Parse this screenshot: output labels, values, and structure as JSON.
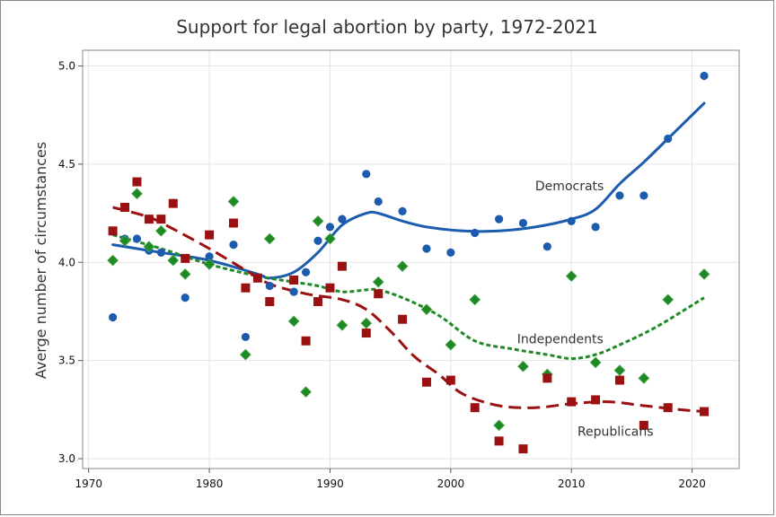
{
  "chart_data": {
    "type": "scatter",
    "title": "Support for legal abortion by party, 1972-2021",
    "xlabel": "",
    "ylabel": "Averge number of circumstances",
    "xlim": [
      1969.5,
      2023.9
    ],
    "ylim": [
      2.95,
      5.08
    ],
    "xticks": [
      1970,
      1980,
      1990,
      2000,
      2010,
      2020
    ],
    "yticks": [
      3.0,
      3.5,
      4.0,
      4.5,
      5.0
    ],
    "ytick_labels": [
      "3.0",
      "3.5",
      "4.0",
      "4.5",
      "5.0"
    ],
    "grid": true,
    "legend": "none",
    "series": [
      {
        "name": "Democrats",
        "color": "#1c5cae",
        "marker": "circle",
        "line_style": "solid",
        "points": [
          {
            "x": 1972,
            "y": 3.72
          },
          {
            "x": 1973,
            "y": 4.12
          },
          {
            "x": 1974,
            "y": 4.12
          },
          {
            "x": 1975,
            "y": 4.06
          },
          {
            "x": 1976,
            "y": 4.05
          },
          {
            "x": 1977,
            "y": 4.01
          },
          {
            "x": 1978,
            "y": 3.82
          },
          {
            "x": 1980,
            "y": 4.03
          },
          {
            "x": 1982,
            "y": 4.09
          },
          {
            "x": 1983,
            "y": 3.62
          },
          {
            "x": 1984,
            "y": 3.92
          },
          {
            "x": 1985,
            "y": 3.88
          },
          {
            "x": 1987,
            "y": 3.85
          },
          {
            "x": 1988,
            "y": 3.95
          },
          {
            "x": 1989,
            "y": 4.11
          },
          {
            "x": 1990,
            "y": 4.18
          },
          {
            "x": 1991,
            "y": 4.22
          },
          {
            "x": 1993,
            "y": 4.45
          },
          {
            "x": 1994,
            "y": 4.31
          },
          {
            "x": 1996,
            "y": 4.26
          },
          {
            "x": 1998,
            "y": 4.07
          },
          {
            "x": 2000,
            "y": 4.05
          },
          {
            "x": 2002,
            "y": 4.15
          },
          {
            "x": 2004,
            "y": 4.22
          },
          {
            "x": 2006,
            "y": 4.2
          },
          {
            "x": 2008,
            "y": 4.08
          },
          {
            "x": 2010,
            "y": 4.21
          },
          {
            "x": 2012,
            "y": 4.18
          },
          {
            "x": 2014,
            "y": 4.34
          },
          {
            "x": 2016,
            "y": 4.34
          },
          {
            "x": 2018,
            "y": 4.63
          },
          {
            "x": 2021,
            "y": 4.95
          }
        ],
        "trend": [
          {
            "x": 1972,
            "y": 4.09
          },
          {
            "x": 1976,
            "y": 4.05
          },
          {
            "x": 1980,
            "y": 4.01
          },
          {
            "x": 1984,
            "y": 3.94
          },
          {
            "x": 1985,
            "y": 3.92
          },
          {
            "x": 1987,
            "y": 3.95
          },
          {
            "x": 1989,
            "y": 4.05
          },
          {
            "x": 1991,
            "y": 4.19
          },
          {
            "x": 1993,
            "y": 4.25
          },
          {
            "x": 1994,
            "y": 4.25
          },
          {
            "x": 1996,
            "y": 4.21
          },
          {
            "x": 1998,
            "y": 4.18
          },
          {
            "x": 2001,
            "y": 4.16
          },
          {
            "x": 2004,
            "y": 4.16
          },
          {
            "x": 2007,
            "y": 4.18
          },
          {
            "x": 2010,
            "y": 4.22
          },
          {
            "x": 2012,
            "y": 4.27
          },
          {
            "x": 2014,
            "y": 4.4
          },
          {
            "x": 2016,
            "y": 4.51
          },
          {
            "x": 2018,
            "y": 4.63
          },
          {
            "x": 2021,
            "y": 4.81
          }
        ]
      },
      {
        "name": "Independents",
        "color": "#1f8a25",
        "marker": "diamond",
        "line_style": "dotted",
        "points": [
          {
            "x": 1972,
            "y": 4.01
          },
          {
            "x": 1973,
            "y": 4.11
          },
          {
            "x": 1974,
            "y": 4.35
          },
          {
            "x": 1975,
            "y": 4.08
          },
          {
            "x": 1976,
            "y": 4.16
          },
          {
            "x": 1977,
            "y": 4.01
          },
          {
            "x": 1978,
            "y": 3.94
          },
          {
            "x": 1980,
            "y": 3.99
          },
          {
            "x": 1982,
            "y": 4.31
          },
          {
            "x": 1983,
            "y": 3.53
          },
          {
            "x": 1985,
            "y": 4.12
          },
          {
            "x": 1987,
            "y": 3.7
          },
          {
            "x": 1988,
            "y": 3.34
          },
          {
            "x": 1989,
            "y": 4.21
          },
          {
            "x": 1990,
            "y": 4.12
          },
          {
            "x": 1991,
            "y": 3.68
          },
          {
            "x": 1993,
            "y": 3.69
          },
          {
            "x": 1994,
            "y": 3.9
          },
          {
            "x": 1996,
            "y": 3.98
          },
          {
            "x": 1998,
            "y": 3.76
          },
          {
            "x": 2000,
            "y": 3.58
          },
          {
            "x": 2002,
            "y": 3.81
          },
          {
            "x": 2004,
            "y": 3.17
          },
          {
            "x": 2006,
            "y": 3.47
          },
          {
            "x": 2008,
            "y": 3.43
          },
          {
            "x": 2010,
            "y": 3.93
          },
          {
            "x": 2012,
            "y": 3.49
          },
          {
            "x": 2014,
            "y": 3.45
          },
          {
            "x": 2016,
            "y": 3.41
          },
          {
            "x": 2018,
            "y": 3.81
          },
          {
            "x": 2021,
            "y": 3.94
          }
        ],
        "trend": [
          {
            "x": 1972,
            "y": 4.14
          },
          {
            "x": 1976,
            "y": 4.07
          },
          {
            "x": 1980,
            "y": 3.99
          },
          {
            "x": 1984,
            "y": 3.93
          },
          {
            "x": 1987,
            "y": 3.9
          },
          {
            "x": 1989,
            "y": 3.88
          },
          {
            "x": 1991,
            "y": 3.85
          },
          {
            "x": 1993,
            "y": 3.86
          },
          {
            "x": 1994,
            "y": 3.86
          },
          {
            "x": 1996,
            "y": 3.82
          },
          {
            "x": 1999,
            "y": 3.73
          },
          {
            "x": 2002,
            "y": 3.6
          },
          {
            "x": 2005,
            "y": 3.56
          },
          {
            "x": 2008,
            "y": 3.53
          },
          {
            "x": 2010,
            "y": 3.51
          },
          {
            "x": 2012,
            "y": 3.53
          },
          {
            "x": 2014,
            "y": 3.58
          },
          {
            "x": 2017,
            "y": 3.67
          },
          {
            "x": 2021,
            "y": 3.82
          }
        ]
      },
      {
        "name": "Republicans",
        "color": "#9b1111",
        "marker": "square",
        "line_style": "dashed",
        "points": [
          {
            "x": 1972,
            "y": 4.16
          },
          {
            "x": 1973,
            "y": 4.28
          },
          {
            "x": 1974,
            "y": 4.41
          },
          {
            "x": 1975,
            "y": 4.22
          },
          {
            "x": 1976,
            "y": 4.22
          },
          {
            "x": 1977,
            "y": 4.3
          },
          {
            "x": 1978,
            "y": 4.02
          },
          {
            "x": 1980,
            "y": 4.14
          },
          {
            "x": 1982,
            "y": 4.2
          },
          {
            "x": 1983,
            "y": 3.87
          },
          {
            "x": 1984,
            "y": 3.92
          },
          {
            "x": 1985,
            "y": 3.8
          },
          {
            "x": 1987,
            "y": 3.91
          },
          {
            "x": 1988,
            "y": 3.6
          },
          {
            "x": 1989,
            "y": 3.8
          },
          {
            "x": 1990,
            "y": 3.87
          },
          {
            "x": 1991,
            "y": 3.98
          },
          {
            "x": 1993,
            "y": 3.64
          },
          {
            "x": 1994,
            "y": 3.84
          },
          {
            "x": 1996,
            "y": 3.71
          },
          {
            "x": 1998,
            "y": 3.39
          },
          {
            "x": 2000,
            "y": 3.4
          },
          {
            "x": 2002,
            "y": 3.26
          },
          {
            "x": 2004,
            "y": 3.09
          },
          {
            "x": 2006,
            "y": 3.05
          },
          {
            "x": 2008,
            "y": 3.41
          },
          {
            "x": 2010,
            "y": 3.29
          },
          {
            "x": 2012,
            "y": 3.3
          },
          {
            "x": 2014,
            "y": 3.4
          },
          {
            "x": 2016,
            "y": 3.17
          },
          {
            "x": 2018,
            "y": 3.26
          },
          {
            "x": 2021,
            "y": 3.24
          }
        ],
        "trend": [
          {
            "x": 1972,
            "y": 4.28
          },
          {
            "x": 1975,
            "y": 4.23
          },
          {
            "x": 1977,
            "y": 4.17
          },
          {
            "x": 1980,
            "y": 4.07
          },
          {
            "x": 1983,
            "y": 3.96
          },
          {
            "x": 1985,
            "y": 3.89
          },
          {
            "x": 1988,
            "y": 3.84
          },
          {
            "x": 1991,
            "y": 3.81
          },
          {
            "x": 1993,
            "y": 3.76
          },
          {
            "x": 1995,
            "y": 3.65
          },
          {
            "x": 1997,
            "y": 3.52
          },
          {
            "x": 1999,
            "y": 3.43
          },
          {
            "x": 2001,
            "y": 3.33
          },
          {
            "x": 2004,
            "y": 3.27
          },
          {
            "x": 2007,
            "y": 3.26
          },
          {
            "x": 2010,
            "y": 3.28
          },
          {
            "x": 2013,
            "y": 3.29
          },
          {
            "x": 2016,
            "y": 3.27
          },
          {
            "x": 2019,
            "y": 3.25
          },
          {
            "x": 2021,
            "y": 3.24
          }
        ]
      }
    ],
    "annotations": [
      {
        "text": "Democrats",
        "x": 2007.0,
        "y": 4.39,
        "series": "Democrats"
      },
      {
        "text": "Independents",
        "x": 2005.5,
        "y": 3.61,
        "series": "Independents"
      },
      {
        "text": "Republicans",
        "x": 2010.5,
        "y": 3.14,
        "series": "Republicans"
      }
    ]
  }
}
